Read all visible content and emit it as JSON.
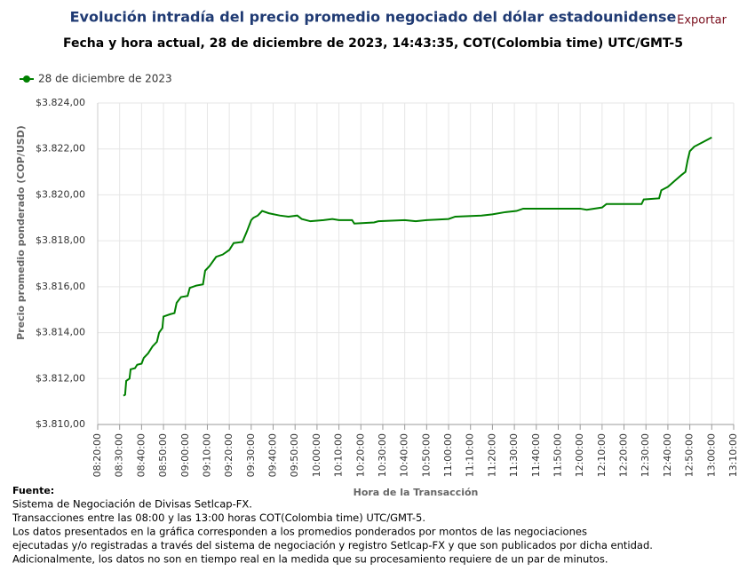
{
  "chart_data": {
    "type": "line",
    "title": "Evolución intradía del precio promedio negociado del dólar estadounidense",
    "subtitle": "Fecha y hora actual, 28 de diciembre de 2023, 14:43:35, COT(Colombia time) UTC/GMT-5",
    "xlabel": "Hora de la Transacción",
    "ylabel": "Precio promedio ponderado (COP/USD)",
    "x": [
      "08:31:45",
      "08:32:30",
      "08:33:00",
      "08:34:30",
      "08:35:00",
      "08:37:00",
      "08:38:00",
      "08:40:00",
      "08:41:00",
      "08:43:00",
      "08:45:00",
      "08:47:00",
      "08:48:00",
      "08:49:30",
      "08:50:00",
      "08:53:00",
      "08:55:00",
      "08:56:00",
      "08:58:00",
      "09:01:00",
      "09:02:00",
      "09:05:00",
      "09:08:00",
      "09:09:00",
      "09:11:00",
      "09:14:00",
      "09:17:00",
      "09:20:00",
      "09:22:00",
      "09:26:00",
      "09:28:00",
      "09:30:00",
      "09:31:00",
      "09:33:00",
      "09:35:00",
      "09:38:00",
      "09:43:00",
      "09:47:00",
      "09:51:00",
      "09:53:00",
      "09:57:00",
      "10:03:00",
      "10:07:00",
      "10:10:00",
      "10:16:00",
      "10:17:00",
      "10:26:00",
      "10:28:00",
      "10:40:00",
      "10:45:00",
      "10:50:00",
      "11:00:00",
      "11:03:00",
      "11:15:00",
      "11:20:00",
      "11:26:00",
      "11:31:00",
      "11:34:00",
      "11:45:00",
      "12:00:00",
      "12:03:00",
      "12:10:00",
      "12:12:00",
      "12:28:00",
      "12:29:00",
      "12:36:00",
      "12:37:00",
      "12:40:00",
      "12:43:00",
      "12:46:00",
      "12:48:00",
      "12:49:00",
      "12:50:00",
      "12:52:00",
      "12:56:00",
      "13:00:00"
    ],
    "series": [
      {
        "name": "28 de diciembre de 2023",
        "color": "#008000",
        "values": [
          3811.25,
          3811.3,
          3811.9,
          3812.0,
          3812.4,
          3812.45,
          3812.6,
          3812.65,
          3812.9,
          3813.1,
          3813.4,
          3813.6,
          3814.0,
          3814.2,
          3814.7,
          3814.8,
          3814.85,
          3815.3,
          3815.55,
          3815.6,
          3815.95,
          3816.05,
          3816.1,
          3816.7,
          3816.9,
          3817.3,
          3817.4,
          3817.6,
          3817.9,
          3817.95,
          3818.4,
          3818.9,
          3819.0,
          3819.1,
          3819.3,
          3819.2,
          3819.1,
          3819.05,
          3819.1,
          3818.95,
          3818.85,
          3818.9,
          3818.95,
          3818.9,
          3818.9,
          3818.75,
          3818.8,
          3818.85,
          3818.9,
          3818.85,
          3818.9,
          3818.95,
          3819.05,
          3819.1,
          3819.15,
          3819.25,
          3819.3,
          3819.4,
          3819.4,
          3819.4,
          3819.35,
          3819.45,
          3819.6,
          3819.6,
          3819.8,
          3819.85,
          3820.2,
          3820.35,
          3820.6,
          3820.85,
          3821.0,
          3821.5,
          3821.9,
          3822.1,
          3822.3,
          3822.5
        ]
      }
    ],
    "xlim": [
      "08:20:00",
      "13:10:00"
    ],
    "xticks": [
      "08:20:00",
      "08:30:00",
      "08:40:00",
      "08:50:00",
      "09:00:00",
      "09:10:00",
      "09:20:00",
      "09:30:00",
      "09:40:00",
      "09:50:00",
      "10:00:00",
      "10:10:00",
      "10:20:00",
      "10:30:00",
      "10:40:00",
      "10:50:00",
      "11:00:00",
      "11:10:00",
      "11:20:00",
      "11:30:00",
      "11:40:00",
      "11:50:00",
      "12:00:00",
      "12:10:00",
      "12:20:00",
      "12:30:00",
      "12:40:00",
      "12:50:00",
      "13:00:00",
      "13:10:00"
    ],
    "ylim": [
      3810,
      3824
    ],
    "yticks": [
      {
        "value": 3810,
        "label": "$3.810,00"
      },
      {
        "value": 3812,
        "label": "$3.812,00"
      },
      {
        "value": 3814,
        "label": "$3.814,00"
      },
      {
        "value": 3816,
        "label": "$3.816,00"
      },
      {
        "value": 3818,
        "label": "$3.818,00"
      },
      {
        "value": 3820,
        "label": "$3.820,00"
      },
      {
        "value": 3822,
        "label": "$3.822,00"
      },
      {
        "value": 3824,
        "label": "$3.824,00"
      }
    ],
    "grid": true,
    "legend": "top-left"
  },
  "export_button": "Exportar",
  "footer": {
    "heading": "Fuente:",
    "lines": [
      "Sistema de Negociación de Divisas Setlcap-FX.",
      "Transacciones entre las 08:00 y las 13:00 horas COT(Colombia time) UTC/GMT-5.",
      "Los datos presentados en la gráfica corresponden a los promedios ponderados por montos de las negociaciones",
      "ejecutadas y/o registradas a través del sistema de negociación y registro Setlcap-FX y que son publicados por dicha entidad.",
      "Adicionalmente, los datos no son en tiempo real en la medida que su procesamiento requiere de un par de minutos."
    ]
  }
}
